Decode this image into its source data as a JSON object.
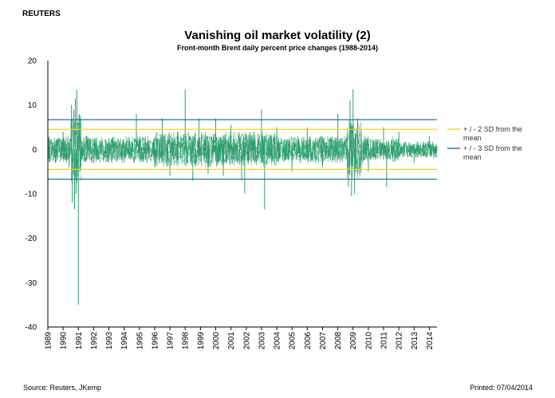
{
  "header": {
    "brand": "REUTERS"
  },
  "footer": {
    "source": "Source: Reuters, JKemp",
    "printed": "Printed: 07/04/2014"
  },
  "colors": {
    "series": "#2e9e6e",
    "band2": "#f2d22b",
    "band3": "#2a6f96",
    "axis": "#000000"
  },
  "chart_data": {
    "type": "line",
    "title": "Vanishing oil market volatility (2)",
    "subtitle": "Front-month Brent daily percent price changes (1988-2014)",
    "xlabel": "",
    "ylabel": "",
    "ylim": [
      -40,
      20
    ],
    "yticks": [
      20,
      10,
      0,
      -10,
      -20,
      -30,
      -40
    ],
    "xlim": [
      1989.0,
      2014.5
    ],
    "xticks": [
      "1989",
      "1990",
      "1991",
      "1992",
      "1993",
      "1994",
      "1995",
      "1996",
      "1997",
      "1998",
      "1999",
      "2000",
      "2001",
      "2002",
      "2003",
      "2004",
      "2005",
      "2006",
      "2007",
      "2008",
      "2009",
      "2010",
      "2011",
      "2012",
      "2013",
      "2014"
    ],
    "grid": false,
    "legend_position": "right",
    "reference_lines": [
      {
        "name": "+ / - 2 SD from the mean",
        "values": [
          4.5,
          -4.5
        ],
        "color": "#f2d22b"
      },
      {
        "name": "+ / - 3 SD from the mean",
        "values": [
          6.7,
          -6.7
        ],
        "color": "#2a6f96"
      }
    ],
    "series": [
      {
        "values_note_free": true,
        "x": [
          1989.0,
          1989.5,
          1990.0,
          1990.4,
          1990.55,
          1990.6,
          1990.7,
          1990.75,
          1990.8,
          1990.85,
          1990.9,
          1991.0,
          1991.05,
          1991.1,
          1991.5,
          1992.0,
          1993.0,
          1994.0,
          1994.8,
          1995.5,
          1996.0,
          1996.5,
          1997.0,
          1997.5,
          1998.0,
          1998.5,
          1998.9,
          1999.5,
          2000.0,
          2000.5,
          2001.0,
          2001.7,
          2001.9,
          2002.5,
          2003.0,
          2003.2,
          2004.0,
          2005.0,
          2006.0,
          2007.0,
          2008.0,
          2008.7,
          2008.8,
          2008.9,
          2009.0,
          2009.1,
          2009.3,
          2009.5,
          2010.0,
          2011.0,
          2011.2,
          2012.0,
          2013.0,
          2014.0,
          2014.3
        ],
        "values": [
          3.0,
          -3.0,
          4.0,
          -4.0,
          10.0,
          -12.0,
          9.0,
          -13.5,
          11.5,
          -10.0,
          13.5,
          -35.0,
          8.0,
          -5.0,
          3.0,
          -3.0,
          2.5,
          -3.0,
          8.0,
          -3.0,
          -4.0,
          7.0,
          -6.0,
          4.0,
          13.5,
          -7.0,
          7.0,
          -5.5,
          7.0,
          -6.0,
          5.5,
          -7.0,
          -10.0,
          4.0,
          9.0,
          -13.5,
          5.0,
          -5.0,
          5.0,
          -4.0,
          8.0,
          -8.5,
          11.0,
          -10.5,
          13.5,
          -10.0,
          7.0,
          -5.0,
          -5.0,
          5.0,
          -8.5,
          4.0,
          -3.0,
          3.0,
          -2.0
        ]
      }
    ]
  }
}
